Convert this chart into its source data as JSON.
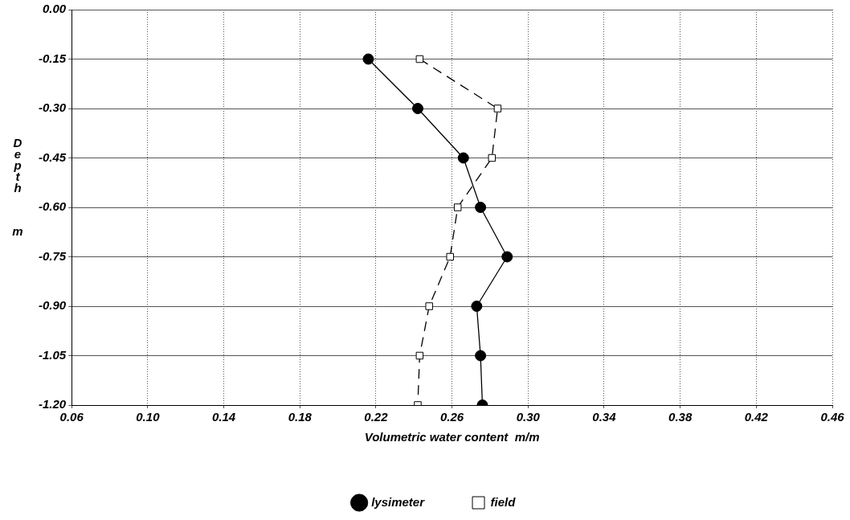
{
  "chart_data": {
    "type": "line",
    "xlabel": "Volumetric water content  m/m",
    "ylabel": "Depth m",
    "xlim": [
      0.06,
      0.46
    ],
    "xticks": [
      {
        "value": 0.06,
        "label": "0.06"
      },
      {
        "value": 0.1,
        "label": "0.10"
      },
      {
        "value": 0.14,
        "label": "0.14"
      },
      {
        "value": 0.18,
        "label": "0.18"
      },
      {
        "value": 0.22,
        "label": "0.22"
      },
      {
        "value": 0.26,
        "label": "0.26"
      },
      {
        "value": 0.3,
        "label": "0.30"
      },
      {
        "value": 0.34,
        "label": "0.34"
      },
      {
        "value": 0.38,
        "label": "0.38"
      },
      {
        "value": 0.42,
        "label": "0.42"
      },
      {
        "value": 0.46,
        "label": "0.46"
      }
    ],
    "ylim": [
      -1.2,
      0
    ],
    "yticks": [
      {
        "value": -1.2,
        "label": "-1.20"
      },
      {
        "value": -1.05,
        "label": "-1.05"
      },
      {
        "value": -0.9,
        "label": "-0.90"
      },
      {
        "value": -0.75,
        "label": "-0.75"
      },
      {
        "value": -0.6,
        "label": "-0.60"
      },
      {
        "value": -0.45,
        "label": "-0.45"
      },
      {
        "value": -0.3,
        "label": "-0.30"
      },
      {
        "value": -0.15,
        "label": "-0.15"
      },
      {
        "value": 0,
        "label": "0.00"
      }
    ],
    "grid": true,
    "legend": "bottom",
    "series": [
      {
        "name": "lysimeter",
        "color": "#000000",
        "marker": "circle",
        "line_style": "solid",
        "x": [
          0.216,
          0.242,
          0.266,
          0.275,
          0.289,
          0.273,
          0.275,
          0.276
        ],
        "values": [
          -0.15,
          -0.3,
          -0.45,
          -0.6,
          -0.75,
          -0.9,
          -1.05,
          -1.2
        ]
      },
      {
        "name": "field",
        "color": "#000000",
        "marker": "square",
        "line_style": "dashed",
        "x": [
          0.243,
          0.284,
          0.281,
          0.263,
          0.259,
          0.248,
          0.243,
          0.242
        ],
        "values": [
          -0.15,
          -0.3,
          -0.45,
          -0.6,
          -0.75,
          -0.9,
          -1.05,
          -1.2
        ]
      }
    ]
  }
}
